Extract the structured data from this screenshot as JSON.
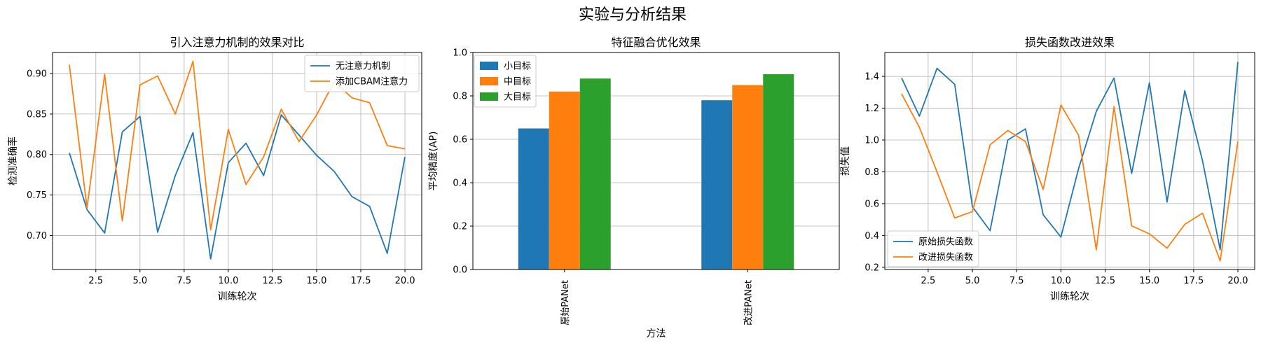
{
  "figure": {
    "suptitle": "实验与分析结果"
  },
  "chart_data": [
    {
      "type": "line",
      "title": "引入注意力机制的效果对比",
      "xlabel": "训练轮次",
      "ylabel": "检测准确率",
      "x": [
        1,
        2,
        3,
        4,
        5,
        6,
        7,
        8,
        9,
        10,
        11,
        12,
        13,
        14,
        15,
        16,
        17,
        18,
        19,
        20
      ],
      "xlim": [
        0.05,
        20.95
      ],
      "ylim": [
        0.658,
        0.926
      ],
      "xticks": [
        2.5,
        5.0,
        7.5,
        10.0,
        12.5,
        15.0,
        17.5,
        20.0
      ],
      "xtick_labels": [
        "2.5",
        "5.0",
        "7.5",
        "10.0",
        "12.5",
        "15.0",
        "17.5",
        "20.0"
      ],
      "yticks": [
        0.7,
        0.75,
        0.8,
        0.85,
        0.9
      ],
      "ytick_labels": [
        "0.70",
        "0.75",
        "0.80",
        "0.85",
        "0.90"
      ],
      "grid": true,
      "legend_loc": "upper right",
      "series": [
        {
          "name": "无注意力机制",
          "color": "#1f77b4",
          "values": [
            0.802,
            0.732,
            0.703,
            0.828,
            0.847,
            0.704,
            0.774,
            0.827,
            0.671,
            0.79,
            0.814,
            0.774,
            0.849,
            0.824,
            0.799,
            0.779,
            0.748,
            0.736,
            0.678,
            0.797
          ]
        },
        {
          "name": "添加CBAM注意力",
          "color": "#ff7f0e",
          "values": [
            0.911,
            0.734,
            0.899,
            0.718,
            0.886,
            0.897,
            0.85,
            0.915,
            0.707,
            0.831,
            0.763,
            0.797,
            0.856,
            0.816,
            0.849,
            0.89,
            0.87,
            0.864,
            0.811,
            0.807
          ]
        }
      ]
    },
    {
      "type": "bar",
      "title": "特征融合优化效果",
      "xlabel": "方法",
      "ylabel": "平均精度(AP)",
      "categories": [
        "原始PANet",
        "改进PANet"
      ],
      "ylim": [
        0.0,
        1.0
      ],
      "yticks": [
        0.0,
        0.2,
        0.4,
        0.6,
        0.8,
        1.0
      ],
      "ytick_labels": [
        "0.0",
        "0.2",
        "0.4",
        "0.6",
        "0.8",
        "1.0"
      ],
      "grid": true,
      "legend_loc": "upper left",
      "series": [
        {
          "name": "小目标",
          "color": "#1f77b4",
          "values": [
            0.65,
            0.78
          ]
        },
        {
          "name": "中目标",
          "color": "#ff7f0e",
          "values": [
            0.82,
            0.85
          ]
        },
        {
          "name": "大目标",
          "color": "#2ca02c",
          "values": [
            0.88,
            0.9
          ]
        }
      ]
    },
    {
      "type": "line",
      "title": "损失函数改进效果",
      "xlabel": "训练轮次",
      "ylabel": "损失值",
      "x": [
        1,
        2,
        3,
        4,
        5,
        6,
        7,
        8,
        9,
        10,
        11,
        12,
        13,
        14,
        15,
        16,
        17,
        18,
        19,
        20
      ],
      "xlim": [
        0.05,
        20.95
      ],
      "ylim": [
        0.186,
        1.55
      ],
      "xticks": [
        2.5,
        5.0,
        7.5,
        10.0,
        12.5,
        15.0,
        17.5,
        20.0
      ],
      "xtick_labels": [
        "2.5",
        "5.0",
        "7.5",
        "10.0",
        "12.5",
        "15.0",
        "17.5",
        "20.0"
      ],
      "yticks": [
        0.2,
        0.4,
        0.6,
        0.8,
        1.0,
        1.2,
        1.4
      ],
      "ytick_labels": [
        "0.2",
        "0.4",
        "0.6",
        "0.8",
        "1.0",
        "1.2",
        "1.4"
      ],
      "grid": true,
      "legend_loc": "lower left",
      "series": [
        {
          "name": "原始损失函数",
          "color": "#1f77b4",
          "values": [
            1.39,
            1.15,
            1.45,
            1.35,
            0.58,
            0.43,
            1.0,
            1.07,
            0.53,
            0.39,
            0.82,
            1.18,
            1.39,
            0.79,
            1.36,
            0.61,
            1.31,
            0.87,
            0.31,
            1.49
          ]
        },
        {
          "name": "改进损失函数",
          "color": "#ff7f0e",
          "values": [
            1.29,
            1.08,
            0.8,
            0.51,
            0.55,
            0.97,
            1.06,
            0.99,
            0.69,
            1.22,
            1.03,
            0.31,
            1.21,
            0.46,
            0.41,
            0.32,
            0.47,
            0.54,
            0.24,
            0.99
          ]
        }
      ]
    }
  ]
}
